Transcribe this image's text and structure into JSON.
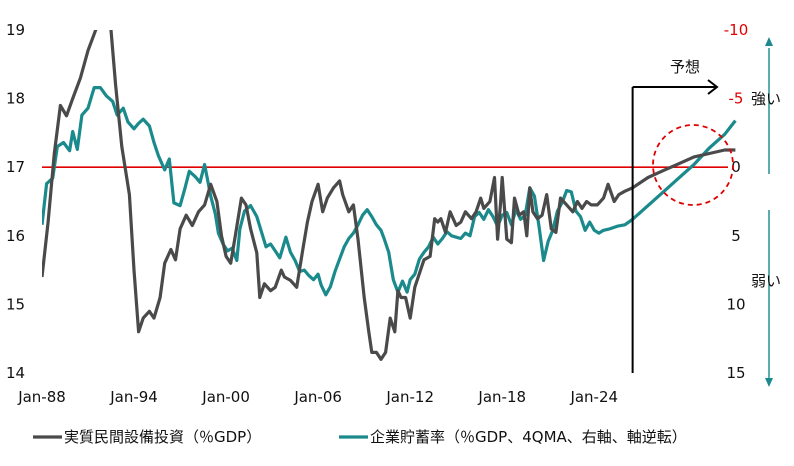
{
  "chart_data": {
    "type": "line",
    "title": "",
    "x_ticks": [
      "Jan-88",
      "Jan-94",
      "Jan-00",
      "Jan-06",
      "Jan-12",
      "Jan-18",
      "Jan-24"
    ],
    "x_range": [
      1988,
      2033.5
    ],
    "left_axis": {
      "ticks": [
        "14",
        "15",
        "16",
        "17",
        "18",
        "19"
      ],
      "ylim": [
        14,
        19
      ]
    },
    "right_axis": {
      "ticks": [
        "-10",
        "-5",
        "0",
        "5",
        "10",
        "15"
      ],
      "ylim": [
        -10,
        15
      ],
      "inverted": true
    },
    "reference_line_value": 17,
    "forecast_start": 2026.5,
    "labels": {
      "forecast": "予想",
      "strong": "強い",
      "weak": "弱い"
    },
    "colors": {
      "investment": "#4a4a4a",
      "savings": "#1a8a8c",
      "reference": "#e00000",
      "right_axis": "#1a8a8c"
    },
    "series": [
      {
        "name": "実質民間設備投資（％GDP）",
        "axis": "left",
        "points": [
          [
            1988,
            15.4
          ],
          [
            1988.4,
            16.2
          ],
          [
            1988.8,
            17.2
          ],
          [
            1989.2,
            17.9
          ],
          [
            1989.6,
            17.75
          ],
          [
            1990,
            18.0
          ],
          [
            1990.5,
            18.3
          ],
          [
            1991,
            18.7
          ],
          [
            1991.5,
            19.0
          ],
          [
            1991.8,
            19.2
          ],
          [
            1992.2,
            19.2
          ],
          [
            1992.5,
            19.0
          ],
          [
            1992.8,
            18.2
          ],
          [
            1993.2,
            17.3
          ],
          [
            1993.7,
            16.6
          ],
          [
            1994,
            15.5
          ],
          [
            1994.3,
            14.6
          ],
          [
            1994.6,
            14.8
          ],
          [
            1995,
            14.9
          ],
          [
            1995.3,
            14.8
          ],
          [
            1995.7,
            15.1
          ],
          [
            1996,
            15.6
          ],
          [
            1996.4,
            15.8
          ],
          [
            1996.7,
            15.65
          ],
          [
            1997,
            16.1
          ],
          [
            1997.4,
            16.3
          ],
          [
            1997.8,
            16.15
          ],
          [
            1998.2,
            16.35
          ],
          [
            1998.6,
            16.45
          ],
          [
            1999,
            16.75
          ],
          [
            1999.4,
            16.5
          ],
          [
            1999.7,
            16.0
          ],
          [
            2000,
            15.7
          ],
          [
            2000.3,
            15.6
          ],
          [
            2000.6,
            16.0
          ],
          [
            2001,
            16.55
          ],
          [
            2001.3,
            16.45
          ],
          [
            2001.6,
            16.1
          ],
          [
            2002,
            15.75
          ],
          [
            2002.2,
            15.1
          ],
          [
            2002.5,
            15.3
          ],
          [
            2002.9,
            15.2
          ],
          [
            2003.2,
            15.25
          ],
          [
            2003.6,
            15.5
          ],
          [
            2003.8,
            15.4
          ],
          [
            2004.2,
            15.35
          ],
          [
            2004.6,
            15.25
          ],
          [
            2005,
            15.8
          ],
          [
            2005.3,
            16.2
          ],
          [
            2005.6,
            16.5
          ],
          [
            2006,
            16.75
          ],
          [
            2006.3,
            16.35
          ],
          [
            2006.6,
            16.55
          ],
          [
            2007,
            16.7
          ],
          [
            2007.4,
            16.8
          ],
          [
            2007.6,
            16.6
          ],
          [
            2008,
            16.35
          ],
          [
            2008.3,
            16.45
          ],
          [
            2008.6,
            15.95
          ],
          [
            2009,
            15.1
          ],
          [
            2009.3,
            14.6
          ],
          [
            2009.5,
            14.3
          ],
          [
            2009.8,
            14.3
          ],
          [
            2010.1,
            14.2
          ],
          [
            2010.4,
            14.3
          ],
          [
            2010.7,
            14.8
          ],
          [
            2011,
            14.6
          ],
          [
            2011.2,
            15.2
          ],
          [
            2011.4,
            15.1
          ],
          [
            2011.7,
            15.1
          ],
          [
            2012,
            14.8
          ],
          [
            2012.3,
            15.25
          ],
          [
            2012.6,
            15.45
          ],
          [
            2012.9,
            15.65
          ],
          [
            2013.3,
            15.7
          ],
          [
            2013.6,
            16.25
          ],
          [
            2013.8,
            16.2
          ],
          [
            2014,
            16.25
          ],
          [
            2014.3,
            16.05
          ],
          [
            2014.6,
            16.35
          ],
          [
            2015,
            16.15
          ],
          [
            2015.3,
            16.2
          ],
          [
            2015.6,
            16.35
          ],
          [
            2016,
            16.25
          ],
          [
            2016.3,
            16.35
          ],
          [
            2016.6,
            16.55
          ],
          [
            2016.8,
            16.4
          ],
          [
            2017.2,
            16.5
          ],
          [
            2017.5,
            16.85
          ],
          [
            2017.7,
            15.95
          ],
          [
            2017.9,
            16.5
          ],
          [
            2018,
            16.85
          ],
          [
            2018.3,
            15.95
          ],
          [
            2018.6,
            15.9
          ],
          [
            2018.8,
            16.55
          ],
          [
            2019.1,
            16.3
          ],
          [
            2019.4,
            16.35
          ],
          [
            2019.6,
            16.0
          ],
          [
            2019.8,
            16.7
          ],
          [
            2020,
            16.35
          ],
          [
            2020.3,
            16.25
          ],
          [
            2020.6,
            16.3
          ],
          [
            2020.9,
            16.6
          ],
          [
            2021.2,
            16.1
          ],
          [
            2021.5,
            16.05
          ],
          [
            2021.8,
            16.55
          ],
          [
            2022.2,
            16.45
          ],
          [
            2022.6,
            16.35
          ],
          [
            2022.9,
            16.5
          ],
          [
            2023.2,
            16.4
          ],
          [
            2023.5,
            16.5
          ],
          [
            2023.8,
            16.45
          ],
          [
            2024.2,
            16.45
          ],
          [
            2024.6,
            16.55
          ],
          [
            2024.9,
            16.75
          ],
          [
            2025.3,
            16.5
          ],
          [
            2025.6,
            16.6
          ],
          [
            2026,
            16.65
          ],
          [
            2026.5,
            16.7
          ],
          [
            2027.5,
            16.85
          ],
          [
            2028.5,
            16.95
          ],
          [
            2029.5,
            17.05
          ],
          [
            2030.5,
            17.15
          ],
          [
            2031.5,
            17.2
          ],
          [
            2032.5,
            17.25
          ],
          [
            2033.2,
            17.25
          ]
        ]
      },
      {
        "name": "企業貯蓄率（％GDP、4QMA、右軸、軸逆転）",
        "axis": "right",
        "points": [
          [
            1988,
            4.2
          ],
          [
            1988.3,
            1.2
          ],
          [
            1988.7,
            0.8
          ],
          [
            1989,
            -1.5
          ],
          [
            1989.4,
            -1.8
          ],
          [
            1989.8,
            -1.2
          ],
          [
            1990,
            -2.6
          ],
          [
            1990.3,
            -1.3
          ],
          [
            1990.6,
            -3.8
          ],
          [
            1991,
            -4.3
          ],
          [
            1991.4,
            -5.8
          ],
          [
            1991.8,
            -5.8
          ],
          [
            1992.2,
            -5.2
          ],
          [
            1992.6,
            -4.8
          ],
          [
            1992.9,
            -3.8
          ],
          [
            1993.3,
            -4.3
          ],
          [
            1993.6,
            -3.3
          ],
          [
            1994,
            -2.8
          ],
          [
            1994.3,
            -3.2
          ],
          [
            1994.6,
            -3.5
          ],
          [
            1995,
            -3.0
          ],
          [
            1995.3,
            -1.8
          ],
          [
            1995.6,
            -0.8
          ],
          [
            1996,
            0.2
          ],
          [
            1996.3,
            -0.6
          ],
          [
            1996.6,
            2.6
          ],
          [
            1997,
            2.8
          ],
          [
            1997.3,
            1.6
          ],
          [
            1997.6,
            0.3
          ],
          [
            1998,
            0.7
          ],
          [
            1998.3,
            1.1
          ],
          [
            1998.6,
            -0.2
          ],
          [
            1999,
            2.1
          ],
          [
            1999.3,
            3.4
          ],
          [
            1999.5,
            4.8
          ],
          [
            1999.8,
            5.6
          ],
          [
            2000.1,
            6.1
          ],
          [
            2000.4,
            5.9
          ],
          [
            2000.7,
            6.8
          ],
          [
            2000.9,
            4.5
          ],
          [
            2001.2,
            3.2
          ],
          [
            2001.6,
            2.8
          ],
          [
            2002,
            3.6
          ],
          [
            2002.3,
            4.7
          ],
          [
            2002.6,
            5.8
          ],
          [
            2002.9,
            5.6
          ],
          [
            2003.2,
            6.1
          ],
          [
            2003.5,
            6.6
          ],
          [
            2003.9,
            5.1
          ],
          [
            2004.2,
            6.2
          ],
          [
            2004.5,
            6.8
          ],
          [
            2004.8,
            7.6
          ],
          [
            2005.1,
            7.5
          ],
          [
            2005.4,
            7.9
          ],
          [
            2005.7,
            8.2
          ],
          [
            2006,
            7.8
          ],
          [
            2006.2,
            8.6
          ],
          [
            2006.5,
            9.3
          ],
          [
            2006.8,
            8.7
          ],
          [
            2007.1,
            7.6
          ],
          [
            2007.4,
            6.7
          ],
          [
            2007.7,
            5.8
          ],
          [
            2008,
            5.2
          ],
          [
            2008.3,
            4.8
          ],
          [
            2008.6,
            4.2
          ],
          [
            2008.9,
            3.5
          ],
          [
            2009.2,
            3.1
          ],
          [
            2009.5,
            3.6
          ],
          [
            2009.8,
            4.2
          ],
          [
            2010.1,
            4.6
          ],
          [
            2010.3,
            5.2
          ],
          [
            2010.6,
            6.2
          ],
          [
            2010.9,
            8.2
          ],
          [
            2011.2,
            9.1
          ],
          [
            2011.5,
            8.3
          ],
          [
            2011.8,
            9.1
          ],
          [
            2012,
            8.2
          ],
          [
            2012.3,
            7.8
          ],
          [
            2012.6,
            6.7
          ],
          [
            2012.9,
            6.2
          ],
          [
            2013.2,
            5.8
          ],
          [
            2013.5,
            5.1
          ],
          [
            2013.8,
            5.6
          ],
          [
            2014.1,
            5.2
          ],
          [
            2014.4,
            4.7
          ],
          [
            2014.7,
            5.0
          ],
          [
            2015,
            5.1
          ],
          [
            2015.3,
            5.2
          ],
          [
            2015.6,
            4.8
          ],
          [
            2015.9,
            5.0
          ],
          [
            2016.2,
            3.6
          ],
          [
            2016.5,
            3.3
          ],
          [
            2016.8,
            3.8
          ],
          [
            2017.1,
            3.1
          ],
          [
            2017.4,
            3.6
          ],
          [
            2017.7,
            4.3
          ],
          [
            2018,
            3.5
          ],
          [
            2018.3,
            3.3
          ],
          [
            2018.6,
            4.2
          ],
          [
            2018.9,
            3.1
          ],
          [
            2019.2,
            3.8
          ],
          [
            2019.5,
            3.5
          ],
          [
            2019.8,
            1.5
          ],
          [
            2020.1,
            2.1
          ],
          [
            2020.4,
            4.3
          ],
          [
            2020.7,
            6.8
          ],
          [
            2021,
            5.4
          ],
          [
            2021.3,
            4.6
          ],
          [
            2021.6,
            3.2
          ],
          [
            2021.9,
            2.6
          ],
          [
            2022.2,
            1.7
          ],
          [
            2022.5,
            1.8
          ],
          [
            2022.8,
            3.2
          ],
          [
            2023.1,
            3.6
          ],
          [
            2023.4,
            4.6
          ],
          [
            2023.7,
            4.0
          ],
          [
            2024,
            4.6
          ],
          [
            2024.3,
            4.8
          ],
          [
            2024.6,
            4.6
          ],
          [
            2025,
            4.5
          ],
          [
            2025.5,
            4.3
          ],
          [
            2026,
            4.2
          ],
          [
            2026.5,
            3.8
          ],
          [
            2027.5,
            2.8
          ],
          [
            2028.5,
            1.8
          ],
          [
            2029.5,
            0.8
          ],
          [
            2030.5,
            -0.2
          ],
          [
            2031.5,
            -1.4
          ],
          [
            2032.5,
            -2.4
          ],
          [
            2033.2,
            -3.4
          ]
        ]
      }
    ]
  }
}
